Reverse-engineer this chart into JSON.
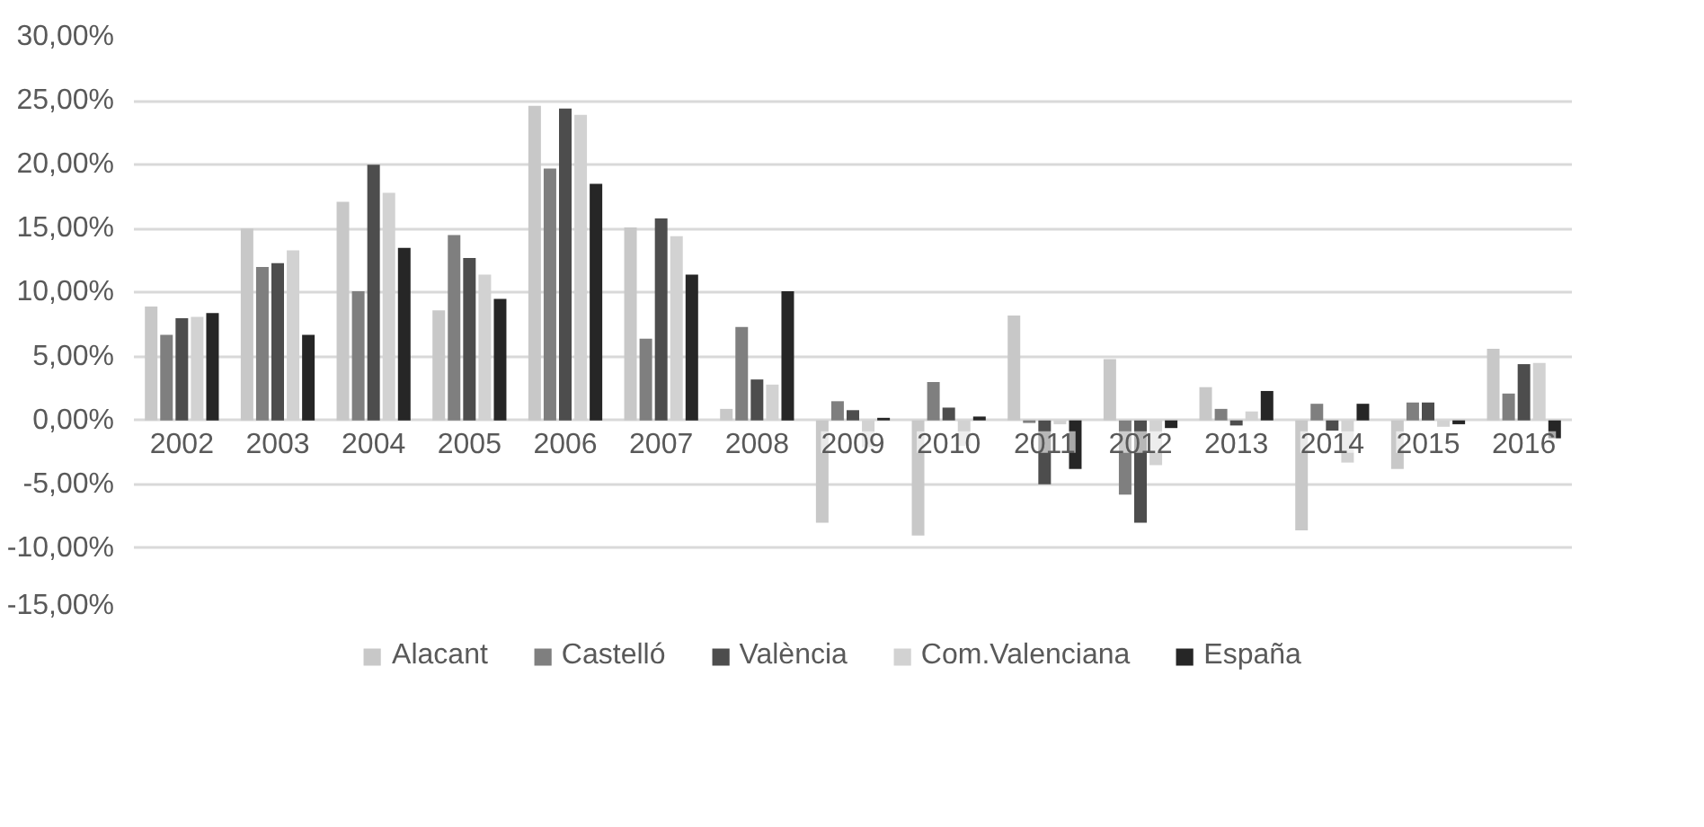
{
  "chart_data": {
    "type": "bar",
    "categories": [
      "2002",
      "2003",
      "2004",
      "2005",
      "2006",
      "2007",
      "2008",
      "2009",
      "2010",
      "2011",
      "2012",
      "2013",
      "2014",
      "2015",
      "2016"
    ],
    "series": [
      {
        "name": "Alacant",
        "color": "#c8c8c8",
        "values": [
          8.9,
          15.0,
          17.1,
          8.6,
          24.6,
          15.1,
          0.9,
          -8.0,
          -9.0,
          8.2,
          4.8,
          2.6,
          -8.6,
          -3.8,
          5.6
        ]
      },
      {
        "name": "Castelló",
        "color": "#7f7f7f",
        "values": [
          6.7,
          12.0,
          10.1,
          14.5,
          19.7,
          6.4,
          7.3,
          1.5,
          3.0,
          -0.2,
          -5.8,
          0.9,
          1.3,
          1.4,
          2.1
        ]
      },
      {
        "name": "València",
        "color": "#4d4d4d",
        "values": [
          8.0,
          12.3,
          20.0,
          12.7,
          24.4,
          15.8,
          3.2,
          0.8,
          1.0,
          -5.0,
          -8.0,
          -0.4,
          -0.8,
          1.4,
          4.4
        ]
      },
      {
        "name": "Com.Valenciana",
        "color": "#d2d2d2",
        "values": [
          8.1,
          13.3,
          17.8,
          11.4,
          23.9,
          14.4,
          2.8,
          -2.1,
          -2.0,
          -0.3,
          -3.5,
          0.7,
          -3.3,
          -0.5,
          4.5
        ]
      },
      {
        "name": "España",
        "color": "#262626",
        "values": [
          8.4,
          6.7,
          13.5,
          9.5,
          18.5,
          11.4,
          10.1,
          0.2,
          0.3,
          -3.8,
          -0.6,
          2.3,
          1.3,
          -0.3,
          -1.4
        ]
      }
    ],
    "ylim": [
      -15,
      30
    ],
    "yticks": [
      {
        "value": -15,
        "label": "-15,00%"
      },
      {
        "value": -10,
        "label": "-10,00%"
      },
      {
        "value": -5,
        "label": "-5,00%"
      },
      {
        "value": 0,
        "label": "0,00%"
      },
      {
        "value": 5,
        "label": "5,00%"
      },
      {
        "value": 10,
        "label": "10,00%"
      },
      {
        "value": 15,
        "label": "15,00%"
      },
      {
        "value": 20,
        "label": "20,00%"
      },
      {
        "value": 25,
        "label": "25,00%"
      },
      {
        "value": 30,
        "label": "30,00%"
      }
    ],
    "grid": "y",
    "legend": "bottom"
  }
}
